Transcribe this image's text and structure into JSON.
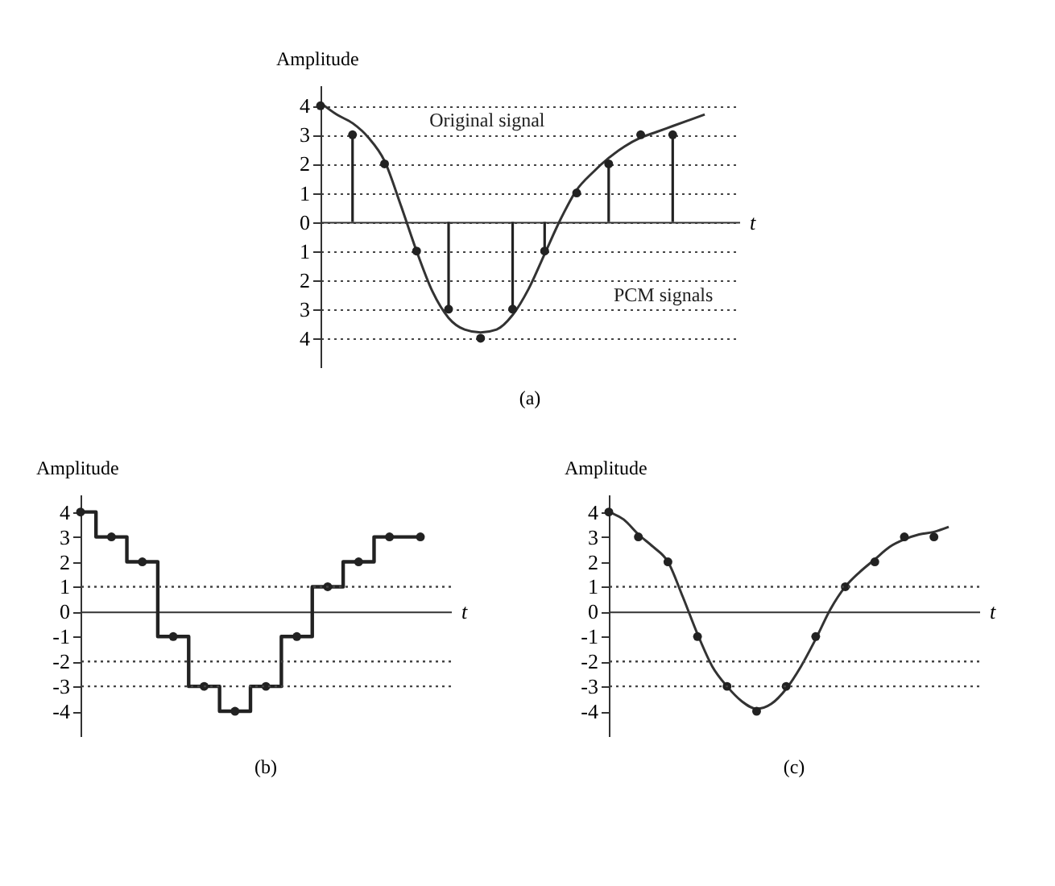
{
  "chart_data": [
    {
      "type": "line",
      "title": "(a)",
      "ylabel": "Amplitude",
      "xlabel": "t",
      "categories": [
        null,
        null,
        null,
        null,
        null,
        null,
        null,
        null,
        null,
        null,
        null,
        null,
        null,
        null,
        null,
        null,
        null,
        null,
        null,
        null,
        null,
        null,
        null,
        null,
        null
      ],
      "ylim": [
        -5,
        4.7
      ],
      "yticks": [
        4,
        3,
        2,
        1,
        0,
        {
          "value": -1,
          "label": "1"
        },
        {
          "value": -2,
          "label": "2"
        },
        {
          "value": -3,
          "label": "3"
        },
        {
          "value": -4,
          "label": "4"
        }
      ],
      "tick_labels": "y",
      "grid": "y",
      "series": [
        {
          "color": "#333333",
          "values": [
            4.1,
            3.7,
            3.4,
            2.9,
            2.1,
            0.6,
            -1.0,
            -2.4,
            -3.3,
            -3.7,
            -3.8,
            -3.7,
            -3.2,
            -2.3,
            -1.1,
            0.1,
            1.1,
            1.7,
            2.2,
            2.6,
            2.9,
            3.1,
            3.3,
            3.5,
            3.7
          ]
        },
        {
          "type": "lollipop",
          "color": "#222222",
          "values": [
            null,
            null,
            3,
            null,
            null,
            null,
            null,
            null,
            -3,
            null,
            null,
            null,
            -3,
            null,
            -1,
            null,
            null,
            null,
            2,
            null,
            null,
            null,
            3,
            null,
            null
          ]
        },
        {
          "type": "scatter",
          "color": "#222222",
          "values": [
            4,
            null,
            null,
            null,
            2,
            null,
            -1,
            null,
            null,
            null,
            -4,
            null,
            null,
            null,
            null,
            null,
            1,
            null,
            null,
            null,
            3,
            null,
            null,
            null,
            null
          ]
        }
      ],
      "annotations": [
        "Original signal",
        "PCM signals"
      ]
    },
    {
      "type": "step",
      "title": "(b)",
      "ylabel": "Amplitude",
      "xlabel": "t",
      "categories": [
        null,
        null,
        null,
        null,
        null,
        null,
        null,
        null,
        null,
        null,
        null,
        null
      ],
      "ylim": [
        -5,
        4.7
      ],
      "yticks": [
        4,
        3,
        2,
        1,
        0,
        -1,
        -2,
        -3,
        -4
      ],
      "tick_labels": "y",
      "marker": "circle",
      "ref_lines": [
        {
          "axis": "y",
          "value": 1,
          "line_style": "dotted"
        },
        {
          "axis": "y",
          "value": -2,
          "line_style": "dotted"
        },
        {
          "axis": "y",
          "value": -3,
          "line_style": "dotted"
        }
      ],
      "series": [
        {
          "color": "#222222",
          "values": [
            4,
            3,
            2,
            -1,
            -3,
            -4,
            -3,
            -1,
            1,
            2,
            3,
            3
          ]
        }
      ]
    },
    {
      "type": "line",
      "title": "(c)",
      "ylabel": "Amplitude",
      "xlabel": "t",
      "categories": [
        null,
        null,
        null,
        null,
        null,
        null,
        null,
        null,
        null,
        null,
        null,
        null,
        null,
        null,
        null,
        null,
        null,
        null,
        null,
        null,
        null,
        null,
        null,
        null
      ],
      "ylim": [
        -5,
        4.7
      ],
      "yticks": [
        4,
        3,
        2,
        1,
        0,
        -1,
        -2,
        -3,
        -4
      ],
      "tick_labels": "y",
      "ref_lines": [
        {
          "axis": "y",
          "value": 1,
          "line_style": "dotted"
        },
        {
          "axis": "y",
          "value": -2,
          "line_style": "dotted"
        },
        {
          "axis": "y",
          "value": -3,
          "line_style": "dotted"
        }
      ],
      "series": [
        {
          "color": "#333333",
          "values": [
            4,
            3.7,
            3.1,
            2.6,
            2.0,
            0.6,
            -0.9,
            -2.2,
            -3.0,
            -3.6,
            -3.9,
            -3.7,
            -3.1,
            -2.2,
            -1.1,
            0.1,
            1.0,
            1.6,
            2.1,
            2.6,
            2.9,
            3.1,
            3.2,
            3.4
          ]
        },
        {
          "type": "scatter",
          "color": "#222222",
          "values": [
            4,
            null,
            3,
            null,
            2,
            null,
            -1,
            null,
            -3,
            null,
            -4,
            null,
            -3,
            null,
            -1,
            null,
            1,
            null,
            2,
            null,
            3,
            null,
            3,
            null
          ]
        }
      ]
    }
  ]
}
